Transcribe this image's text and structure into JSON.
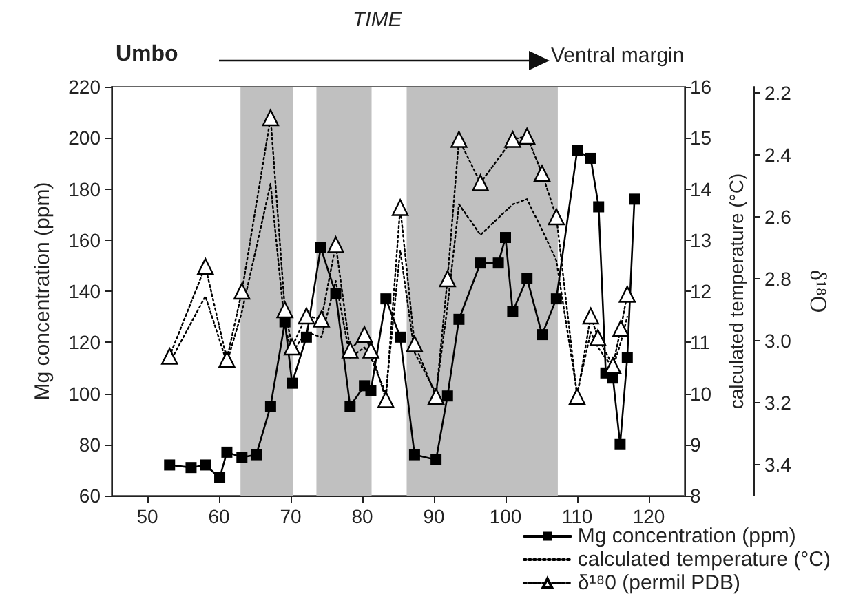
{
  "chart_data": {
    "type": "line",
    "annotations": [
      "TIME",
      "Umbo",
      "Ventral margin"
    ],
    "ylabel": "Mg concentration (ppm)",
    "y2label": "calculated temperature (°C)",
    "y3label": "δ¹⁸O",
    "xlim": [
      45,
      125
    ],
    "xticks": [
      50,
      60,
      70,
      80,
      90,
      100,
      110,
      120
    ],
    "ylim": [
      60,
      220
    ],
    "yticks": [
      60,
      80,
      100,
      120,
      140,
      160,
      180,
      200,
      220
    ],
    "y2lim": [
      8,
      16
    ],
    "y2ticks": [
      8,
      9,
      10,
      11,
      12,
      13,
      14,
      15,
      16
    ],
    "y3lim": [
      3.5,
      2.18
    ],
    "y3ticks": [
      2.2,
      2.4,
      2.6,
      2.8,
      {
        "value": 3,
        "label": "3.0"
      },
      3.2,
      3.4
    ],
    "grid": false,
    "legend": "bottom right",
    "bands": [
      {
        "axis": "x",
        "from": 63,
        "to": 70.3,
        "color": "#c0c0c0"
      },
      {
        "axis": "x",
        "from": 73.6,
        "to": 81.3,
        "color": "#c0c0c0"
      },
      {
        "axis": "x",
        "from": 86.2,
        "to": 107.3,
        "color": "#c0c0c0"
      }
    ],
    "series": [
      {
        "name": "Mg concentration (ppm)",
        "color": "#000000",
        "marker": "square",
        "line_style": "solid",
        "x": [
          53.1,
          56.1,
          58.1,
          60.1,
          61.1,
          63.2,
          65.2,
          67.2,
          69.2,
          70.2,
          72.2,
          74.2,
          76.3,
          78.3,
          80.3,
          81.2,
          83.3,
          85.3,
          87.3,
          90.3,
          91.9,
          93.5,
          96.5,
          99,
          100,
          101,
          103,
          105.1,
          107.1,
          110,
          111.9,
          113,
          114,
          115,
          116,
          117,
          118
        ],
        "values": [
          72,
          71,
          72,
          67,
          77,
          75,
          76,
          95,
          128,
          104,
          122,
          157,
          139,
          95,
          103,
          101,
          137,
          122,
          76,
          74,
          99,
          129,
          151,
          151,
          161,
          132,
          145,
          123,
          137,
          195,
          192,
          173,
          108,
          106,
          80,
          114,
          176
        ]
      },
      {
        "name": "calculated temperature (°C)",
        "color": "#000000",
        "marker": "none",
        "line_style": "dotted",
        "axis": "y2",
        "x": [
          53.1,
          58.1,
          61.1,
          63.2,
          67.2,
          69.2,
          70.2,
          72.2,
          74.3,
          76.3,
          78.3,
          80.3,
          81.2,
          83.3,
          85.3,
          87.3,
          90.3,
          91.9,
          93.5,
          96.5,
          101,
          103,
          105.1,
          107.1,
          110,
          111.9,
          112.9,
          115,
          116.1,
          117
        ],
        "values": [
          10.6,
          11.9,
          10.6,
          11.6,
          14.1,
          11.3,
          10.8,
          11.2,
          11.1,
          12.2,
          10.7,
          10.9,
          10.7,
          10.0,
          12.8,
          10.8,
          10.0,
          11.7,
          13.7,
          13.1,
          13.7,
          13.8,
          13.2,
          12.6,
          10.0,
          11.2,
          10.9,
          10.5,
          11.0,
          11.5
        ]
      },
      {
        "name": "δ¹⁸0 (permil PDB)",
        "color": "#000000",
        "marker": "triangle",
        "line_style": "dotted",
        "axis": "y3",
        "x": [
          53.1,
          58.1,
          61.1,
          63.2,
          67.2,
          69.2,
          70.2,
          72.2,
          74.3,
          76.3,
          78.3,
          80.3,
          81.2,
          83.3,
          85.3,
          87.3,
          90.3,
          91.9,
          93.5,
          96.5,
          101,
          103,
          105.1,
          107.1,
          110,
          111.9,
          112.9,
          115,
          116.1,
          117
        ],
        "values": [
          3.05,
          2.76,
          3.06,
          2.84,
          2.28,
          2.9,
          3.02,
          2.92,
          2.93,
          2.69,
          3.03,
          2.98,
          3.03,
          3.19,
          2.57,
          3.01,
          3.18,
          2.8,
          2.35,
          2.49,
          2.35,
          2.34,
          2.46,
          2.6,
          3.18,
          2.92,
          2.99,
          3.08,
          2.96,
          2.85
        ]
      }
    ]
  }
}
